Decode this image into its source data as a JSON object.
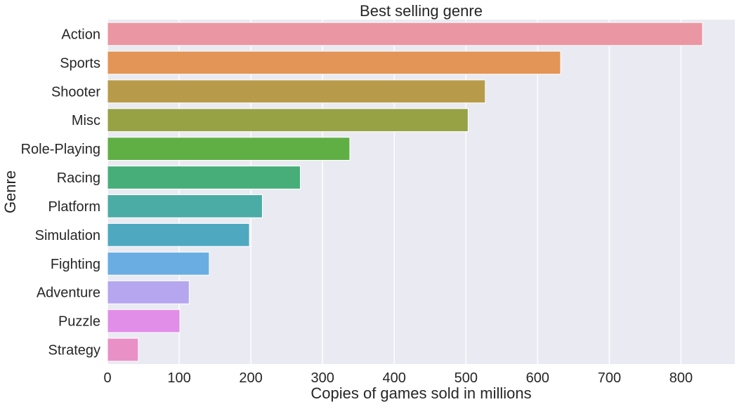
{
  "chart_data": {
    "type": "bar",
    "orientation": "horizontal",
    "title": "Best selling genre",
    "xlabel": "Copies of games sold in millions",
    "ylabel": "Genre",
    "categories": [
      "Action",
      "Sports",
      "Shooter",
      "Misc",
      "Role-Playing",
      "Racing",
      "Platform",
      "Simulation",
      "Fighting",
      "Adventure",
      "Puzzle",
      "Strategy"
    ],
    "values": [
      830,
      632,
      527,
      503,
      338,
      269,
      216,
      198,
      142,
      114,
      101,
      43
    ],
    "colors": [
      "#EA96A3",
      "#E29556",
      "#B89B4A",
      "#97A245",
      "#60AF45",
      "#47AE79",
      "#4BACA5",
      "#4EA9C0",
      "#69ADE3",
      "#B5A6EF",
      "#E08EE8",
      "#E990C7"
    ],
    "xticks": [
      0,
      100,
      200,
      300,
      400,
      500,
      600,
      700,
      800
    ],
    "xlim": [
      0,
      875
    ],
    "grid": true,
    "background": "#EAEAF2",
    "grid_color": "#FFFFFF"
  }
}
